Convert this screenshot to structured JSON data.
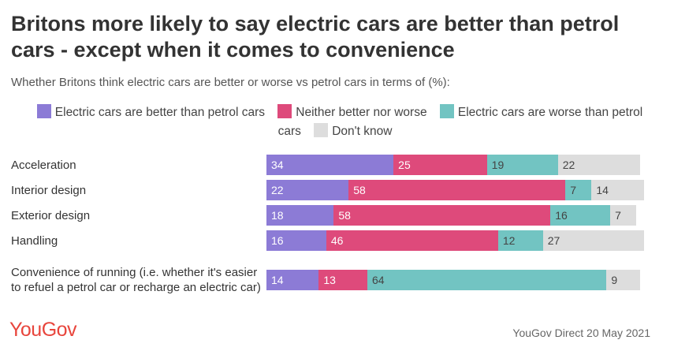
{
  "chart_data": {
    "type": "stacked_bar",
    "title": "Britons more likely to say electric cars are better than petrol cars - except when it comes to convenience",
    "subtitle": "Whether Britons think electric cars are better or worse vs petrol cars in terms of (%):",
    "categories": [
      "Acceleration",
      "Interior design",
      "Exterior design",
      "Handling",
      "Convenience of running (i.e. whether it's easier to refuel a petrol car or recharge an electric car)"
    ],
    "series": [
      {
        "name": "Electric cars are better than petrol cars",
        "color": "#8c7bd6",
        "values": [
          34,
          22,
          18,
          16,
          14
        ]
      },
      {
        "name": "Neither better nor worse",
        "color": "#de4a7b",
        "values": [
          25,
          58,
          58,
          46,
          13
        ]
      },
      {
        "name": "Electric cars are worse than petrol cars",
        "color": "#72c4c2",
        "values": [
          19,
          7,
          16,
          12,
          64
        ]
      },
      {
        "name": "Don't know",
        "color": "#dddddd",
        "values": [
          22,
          14,
          7,
          27,
          9
        ]
      }
    ],
    "logo": "YouGov",
    "source": "YouGov Direct 20 May 2021"
  }
}
